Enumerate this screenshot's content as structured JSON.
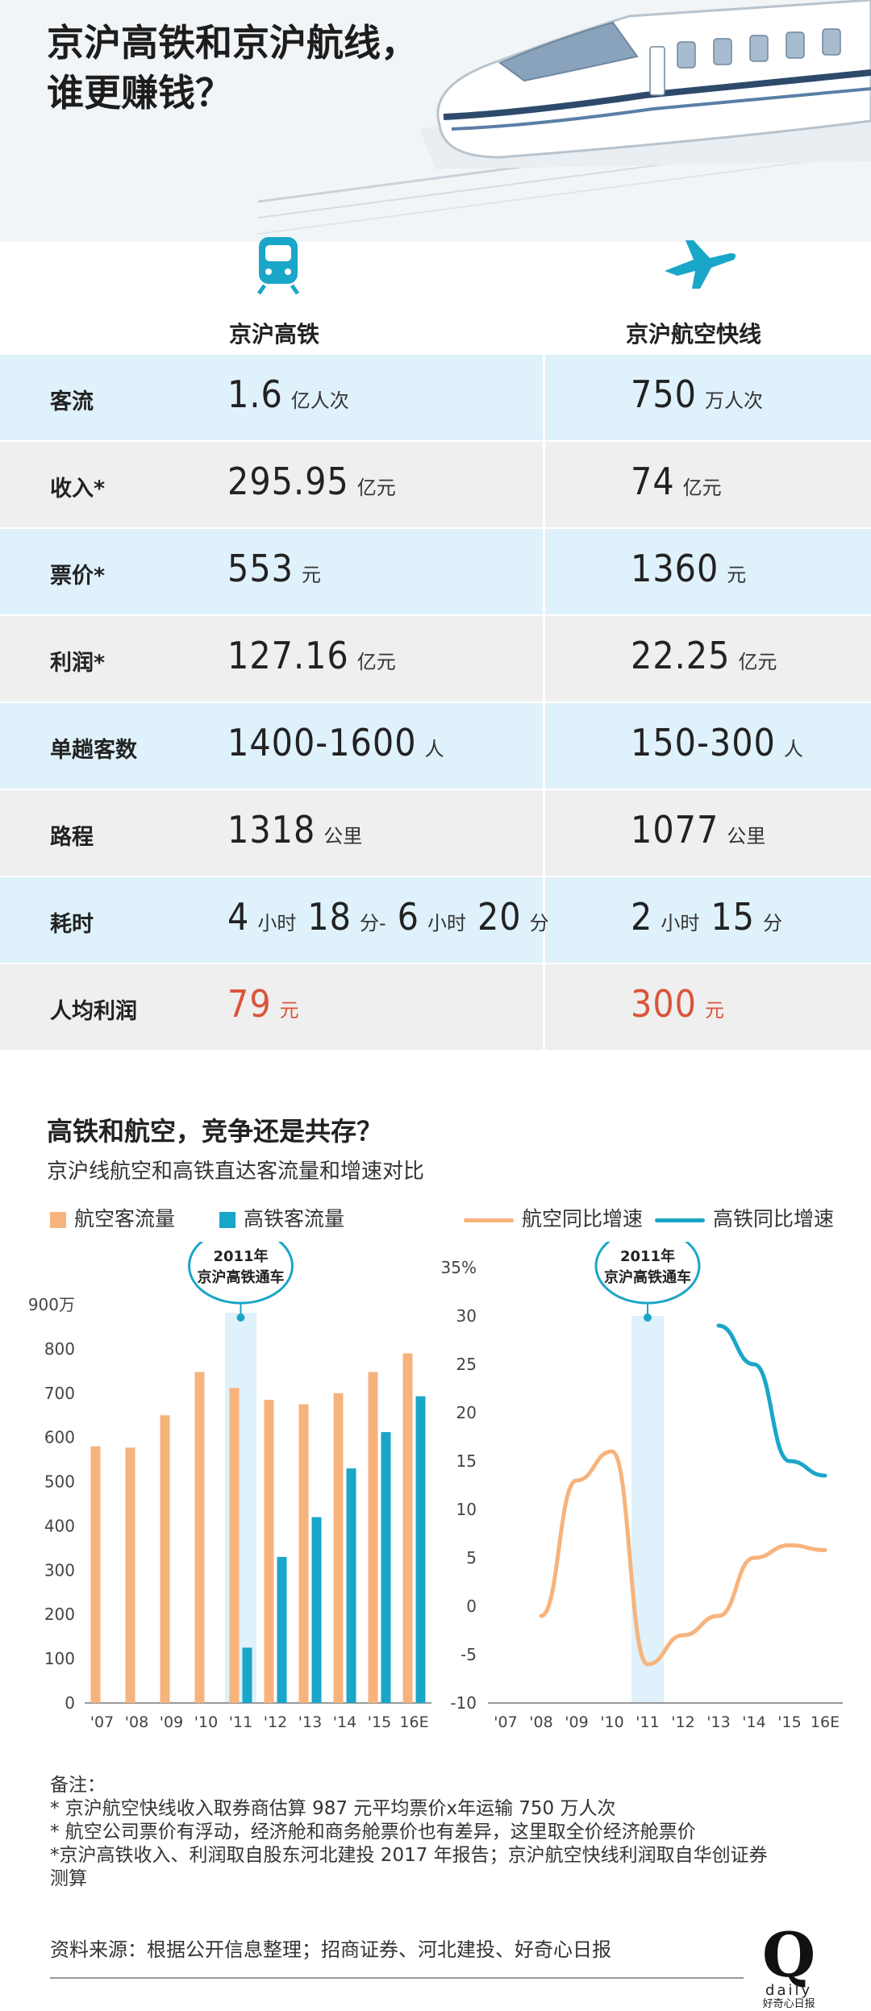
{
  "title_line1": "京沪高铁和京沪航线，",
  "title_line2": "谁更赚钱？",
  "columns": {
    "rail": "京沪高铁",
    "air": "京沪航空快线"
  },
  "icons": {
    "rail": "train-icon",
    "air": "airplane-icon"
  },
  "colors": {
    "rail": "#1aa6c8",
    "air": "#f7b37c",
    "highlight_row": "#dff1fb",
    "plain_row": "#efefef",
    "red": "#d9553a"
  },
  "rows": [
    {
      "label": "客流",
      "rail": [
        [
          "1.6",
          "亿人次"
        ]
      ],
      "air": [
        [
          "750",
          "万人次"
        ]
      ]
    },
    {
      "label": "收入*",
      "rail": [
        [
          "295.95",
          "亿元"
        ]
      ],
      "air": [
        [
          "74",
          "亿元"
        ]
      ]
    },
    {
      "label": "票价*",
      "rail": [
        [
          "553",
          "元"
        ]
      ],
      "air": [
        [
          "1360",
          "元"
        ]
      ]
    },
    {
      "label": "利润*",
      "rail": [
        [
          "127.16",
          "亿元"
        ]
      ],
      "air": [
        [
          "22.25",
          "亿元"
        ]
      ]
    },
    {
      "label": "单趟客数",
      "rail": [
        [
          "1400-1600",
          "人"
        ]
      ],
      "air": [
        [
          "150-300",
          "人"
        ]
      ]
    },
    {
      "label": "路程",
      "rail": [
        [
          "1318",
          "公里"
        ]
      ],
      "air": [
        [
          "1077",
          "公里"
        ]
      ]
    },
    {
      "label": "耗时",
      "rail": [
        [
          "4",
          "小时"
        ],
        [
          "18",
          "分-"
        ],
        [
          "6",
          "小时"
        ],
        [
          "20",
          "分"
        ]
      ],
      "air": [
        [
          "2",
          "小时"
        ],
        [
          "15",
          "分"
        ]
      ]
    },
    {
      "label": "人均利润",
      "rail": [
        [
          "79",
          "元"
        ]
      ],
      "air": [
        [
          "300",
          "元"
        ]
      ],
      "highlight": true
    }
  ],
  "section_title": "高铁和航空，竞争还是共存？",
  "section_subtitle": "京沪线航空和高铁直达客流量和增速对比",
  "legend": {
    "air_volume": "航空客流量",
    "rail_volume": "高铁客流量",
    "air_growth": "航空同比增速",
    "rail_growth": "高铁同比增速"
  },
  "annotation": {
    "year": "2011年",
    "text": "京沪高铁通车"
  },
  "chart_data": [
    {
      "type": "bar",
      "categories": [
        "'07",
        "'08",
        "'09",
        "'10",
        "'11",
        "'12",
        "'13",
        "'14",
        "'15",
        "16E"
      ],
      "series": [
        {
          "name": "航空客流量",
          "values": [
            580,
            577,
            650,
            748,
            712,
            685,
            675,
            700,
            748,
            790
          ]
        },
        {
          "name": "高铁客流量",
          "values": [
            null,
            null,
            null,
            null,
            125,
            330,
            420,
            530,
            612,
            693
          ]
        }
      ],
      "yticks": [
        "0",
        "100",
        "200",
        "300",
        "400",
        "500",
        "600",
        "700",
        "800",
        "900万"
      ],
      "ylim": [
        0,
        900
      ],
      "highlight_category": "'11"
    },
    {
      "type": "line",
      "categories": [
        "'07",
        "'08",
        "'09",
        "'10",
        "'11",
        "'12",
        "'13",
        "'14",
        "'15",
        "16E"
      ],
      "series": [
        {
          "name": "航空同比增速",
          "values": [
            null,
            -1,
            13,
            16,
            -6,
            -3,
            -1,
            5,
            6.3,
            5.8
          ]
        },
        {
          "name": "高铁同比增速",
          "values": [
            null,
            null,
            null,
            null,
            null,
            null,
            29,
            25,
            15,
            13.5
          ]
        }
      ],
      "yticks": [
        "-10",
        "-5",
        "0",
        "5",
        "10",
        "15",
        "20",
        "25",
        "30",
        "35%"
      ],
      "ylim": [
        -10,
        35
      ],
      "highlight_category": "'11"
    }
  ],
  "notes_title": "备注：",
  "notes": [
    "* 京沪航空快线收入取券商估算 987 元平均票价x年运输 750 万人次",
    "* 航空公司票价有浮动，经济舱和商务舱票价也有差异，这里取全价经济舱票价",
    "*京沪高铁收入、利润取自股东河北建投 2017 年报告；京沪航空快线利润取自华创证券测算"
  ],
  "source": "资料来源：根据公开信息整理；招商证券、河北建投、好奇心日报",
  "logo": {
    "letter": "Q",
    "word": "daily",
    "sub": "好奇心日报"
  }
}
